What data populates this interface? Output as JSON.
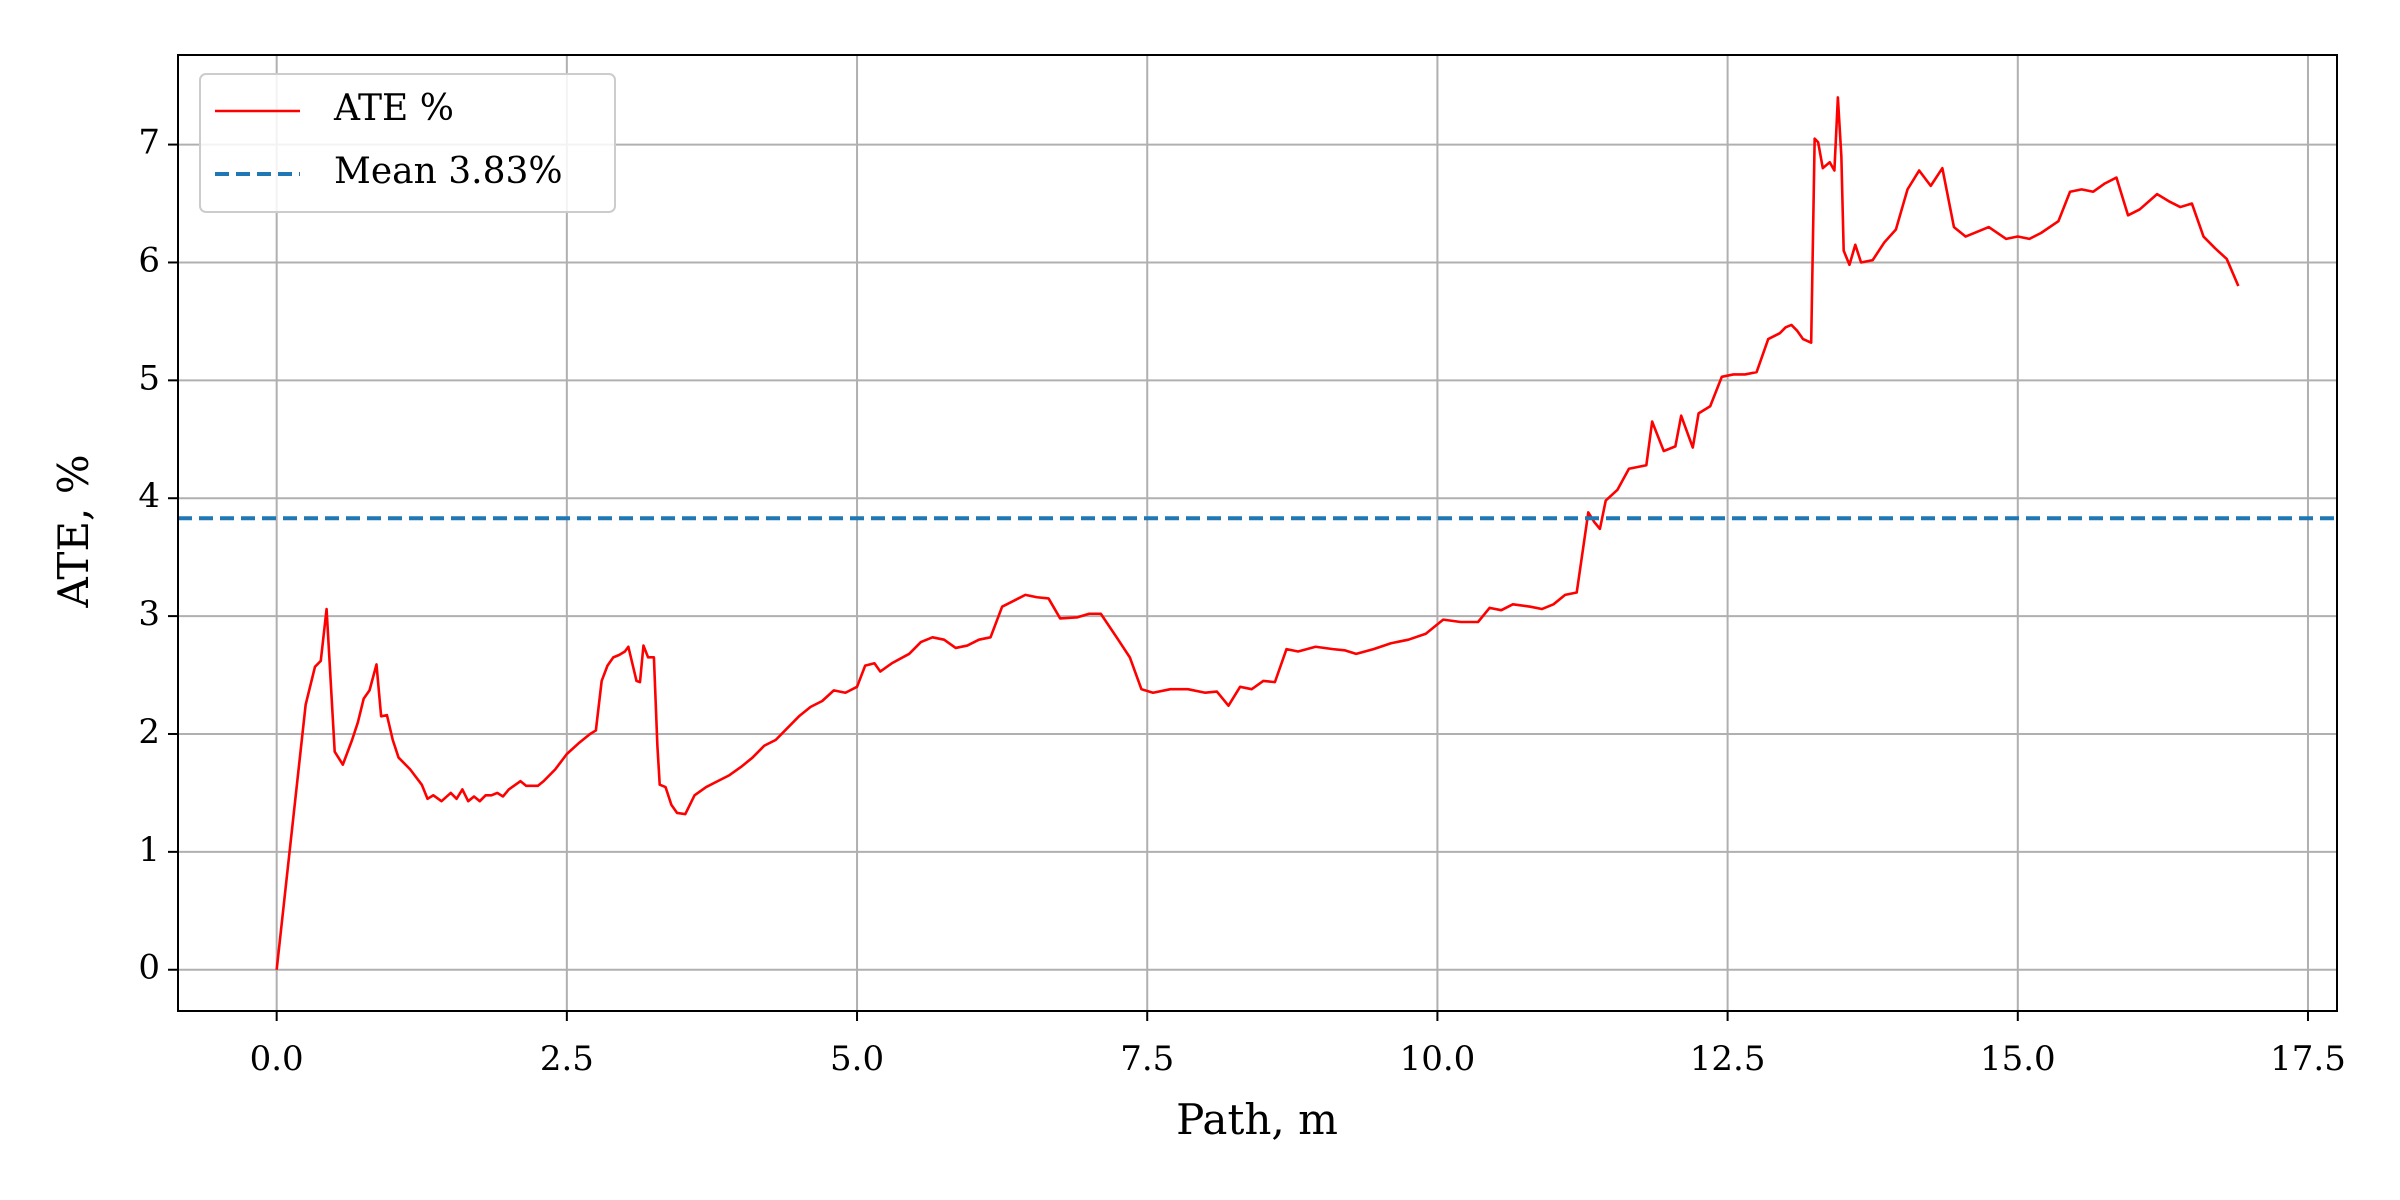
{
  "chart_data": {
    "type": "line",
    "xlabel": "Path, m",
    "ylabel": "ATE, %",
    "x": [
      0,
      0.25,
      0.33,
      0.38,
      0.43,
      0.5,
      0.57,
      0.65,
      0.7,
      0.75,
      0.8,
      0.86,
      0.9,
      0.95,
      1.0,
      1.05,
      1.15,
      1.25,
      1.3,
      1.35,
      1.42,
      1.5,
      1.55,
      1.6,
      1.65,
      1.7,
      1.75,
      1.8,
      1.85,
      1.9,
      1.95,
      2.0,
      2.1,
      2.15,
      2.25,
      2.3,
      2.4,
      2.5,
      2.6,
      2.7,
      2.75,
      2.8,
      2.85,
      2.9,
      2.95,
      3.0,
      3.03,
      3.1,
      3.13,
      3.16,
      3.2,
      3.25,
      3.28,
      3.3,
      3.35,
      3.4,
      3.45,
      3.52,
      3.6,
      3.7,
      3.8,
      3.9,
      4.0,
      4.1,
      4.2,
      4.3,
      4.4,
      4.5,
      4.6,
      4.7,
      4.8,
      4.9,
      5.0,
      5.07,
      5.15,
      5.2,
      5.3,
      5.45,
      5.55,
      5.65,
      5.75,
      5.85,
      5.95,
      6.05,
      6.15,
      6.25,
      6.35,
      6.45,
      6.55,
      6.65,
      6.75,
      6.9,
      7.0,
      7.1,
      7.25,
      7.35,
      7.45,
      7.55,
      7.7,
      7.85,
      8.0,
      8.1,
      8.2,
      8.3,
      8.4,
      8.5,
      8.6,
      8.7,
      8.8,
      8.95,
      9.1,
      9.2,
      9.3,
      9.45,
      9.6,
      9.75,
      9.9,
      10.05,
      10.2,
      10.35,
      10.45,
      10.55,
      10.65,
      10.8,
      10.9,
      11.0,
      11.1,
      11.2,
      11.3,
      11.35,
      11.4,
      11.45,
      11.55,
      11.65,
      11.8,
      11.85,
      11.95,
      12.05,
      12.1,
      12.2,
      12.25,
      12.35,
      12.45,
      12.55,
      12.65,
      12.75,
      12.85,
      12.95,
      13.0,
      13.05,
      13.1,
      13.15,
      13.22,
      13.25,
      13.28,
      13.32,
      13.38,
      13.42,
      13.45,
      13.48,
      13.5,
      13.55,
      13.6,
      13.65,
      13.75,
      13.85,
      13.95,
      14.05,
      14.15,
      14.25,
      14.35,
      14.45,
      14.55,
      14.75,
      14.9,
      15.0,
      15.1,
      15.2,
      15.35,
      15.45,
      15.55,
      15.65,
      15.75,
      15.85,
      15.95,
      16.05,
      16.2,
      16.3,
      16.4,
      16.5,
      16.6,
      16.7,
      16.8,
      16.9
    ],
    "series": [
      {
        "name": "ATE %",
        "color": "#ff0000",
        "values": [
          0,
          2.25,
          2.57,
          2.62,
          3.06,
          1.85,
          1.74,
          1.95,
          2.1,
          2.3,
          2.37,
          2.59,
          2.15,
          2.16,
          1.95,
          1.8,
          1.7,
          1.57,
          1.45,
          1.48,
          1.43,
          1.5,
          1.45,
          1.53,
          1.43,
          1.47,
          1.43,
          1.48,
          1.48,
          1.5,
          1.47,
          1.53,
          1.6,
          1.56,
          1.56,
          1.6,
          1.7,
          1.83,
          1.92,
          2.0,
          2.03,
          2.45,
          2.58,
          2.65,
          2.67,
          2.7,
          2.74,
          2.45,
          2.44,
          2.75,
          2.65,
          2.65,
          1.9,
          1.57,
          1.55,
          1.4,
          1.33,
          1.32,
          1.48,
          1.55,
          1.6,
          1.65,
          1.72,
          1.8,
          1.9,
          1.95,
          2.05,
          2.15,
          2.23,
          2.28,
          2.37,
          2.35,
          2.4,
          2.58,
          2.6,
          2.53,
          2.6,
          2.68,
          2.78,
          2.82,
          2.8,
          2.73,
          2.75,
          2.8,
          2.82,
          3.08,
          3.13,
          3.18,
          3.16,
          3.15,
          2.98,
          2.99,
          3.02,
          3.02,
          2.8,
          2.65,
          2.38,
          2.35,
          2.38,
          2.38,
          2.35,
          2.36,
          2.24,
          2.4,
          2.38,
          2.45,
          2.44,
          2.72,
          2.7,
          2.74,
          2.72,
          2.71,
          2.68,
          2.72,
          2.77,
          2.8,
          2.85,
          2.97,
          2.95,
          2.95,
          3.07,
          3.05,
          3.1,
          3.08,
          3.06,
          3.1,
          3.18,
          3.2,
          3.88,
          3.8,
          3.74,
          3.98,
          4.07,
          4.25,
          4.28,
          4.65,
          4.4,
          4.44,
          4.7,
          4.43,
          4.72,
          4.78,
          5.03,
          5.05,
          5.05,
          5.07,
          5.35,
          5.4,
          5.45,
          5.47,
          5.42,
          5.35,
          5.32,
          7.05,
          7.02,
          6.8,
          6.85,
          6.78,
          7.4,
          6.9,
          6.1,
          5.98,
          6.15,
          6.0,
          6.02,
          6.17,
          6.28,
          6.62,
          6.78,
          6.65,
          6.8,
          6.3,
          6.22,
          6.3,
          6.2,
          6.22,
          6.2,
          6.25,
          6.35,
          6.6,
          6.62,
          6.6,
          6.67,
          6.72,
          6.4,
          6.45,
          6.58,
          6.52,
          6.47,
          6.5,
          6.22,
          6.12,
          6.03,
          5.8
        ]
      }
    ],
    "reference_line": {
      "name": "Mean 3.83%",
      "value": 3.83,
      "color": "#1f77b4",
      "style": "dashed"
    },
    "xlim": [
      -0.85,
      17.75
    ],
    "ylim": [
      -0.35,
      7.76
    ],
    "xticks": [
      {
        "value": 0,
        "label": "0.0"
      },
      2.5,
      {
        "value": 5,
        "label": "5.0"
      },
      7.5,
      {
        "value": 10,
        "label": "10.0"
      },
      12.5,
      {
        "value": 15,
        "label": "15.0"
      },
      17.5
    ],
    "yticks": [
      0,
      1,
      2,
      3,
      4,
      5,
      6,
      7
    ],
    "grid": true,
    "legend": "upper left"
  }
}
